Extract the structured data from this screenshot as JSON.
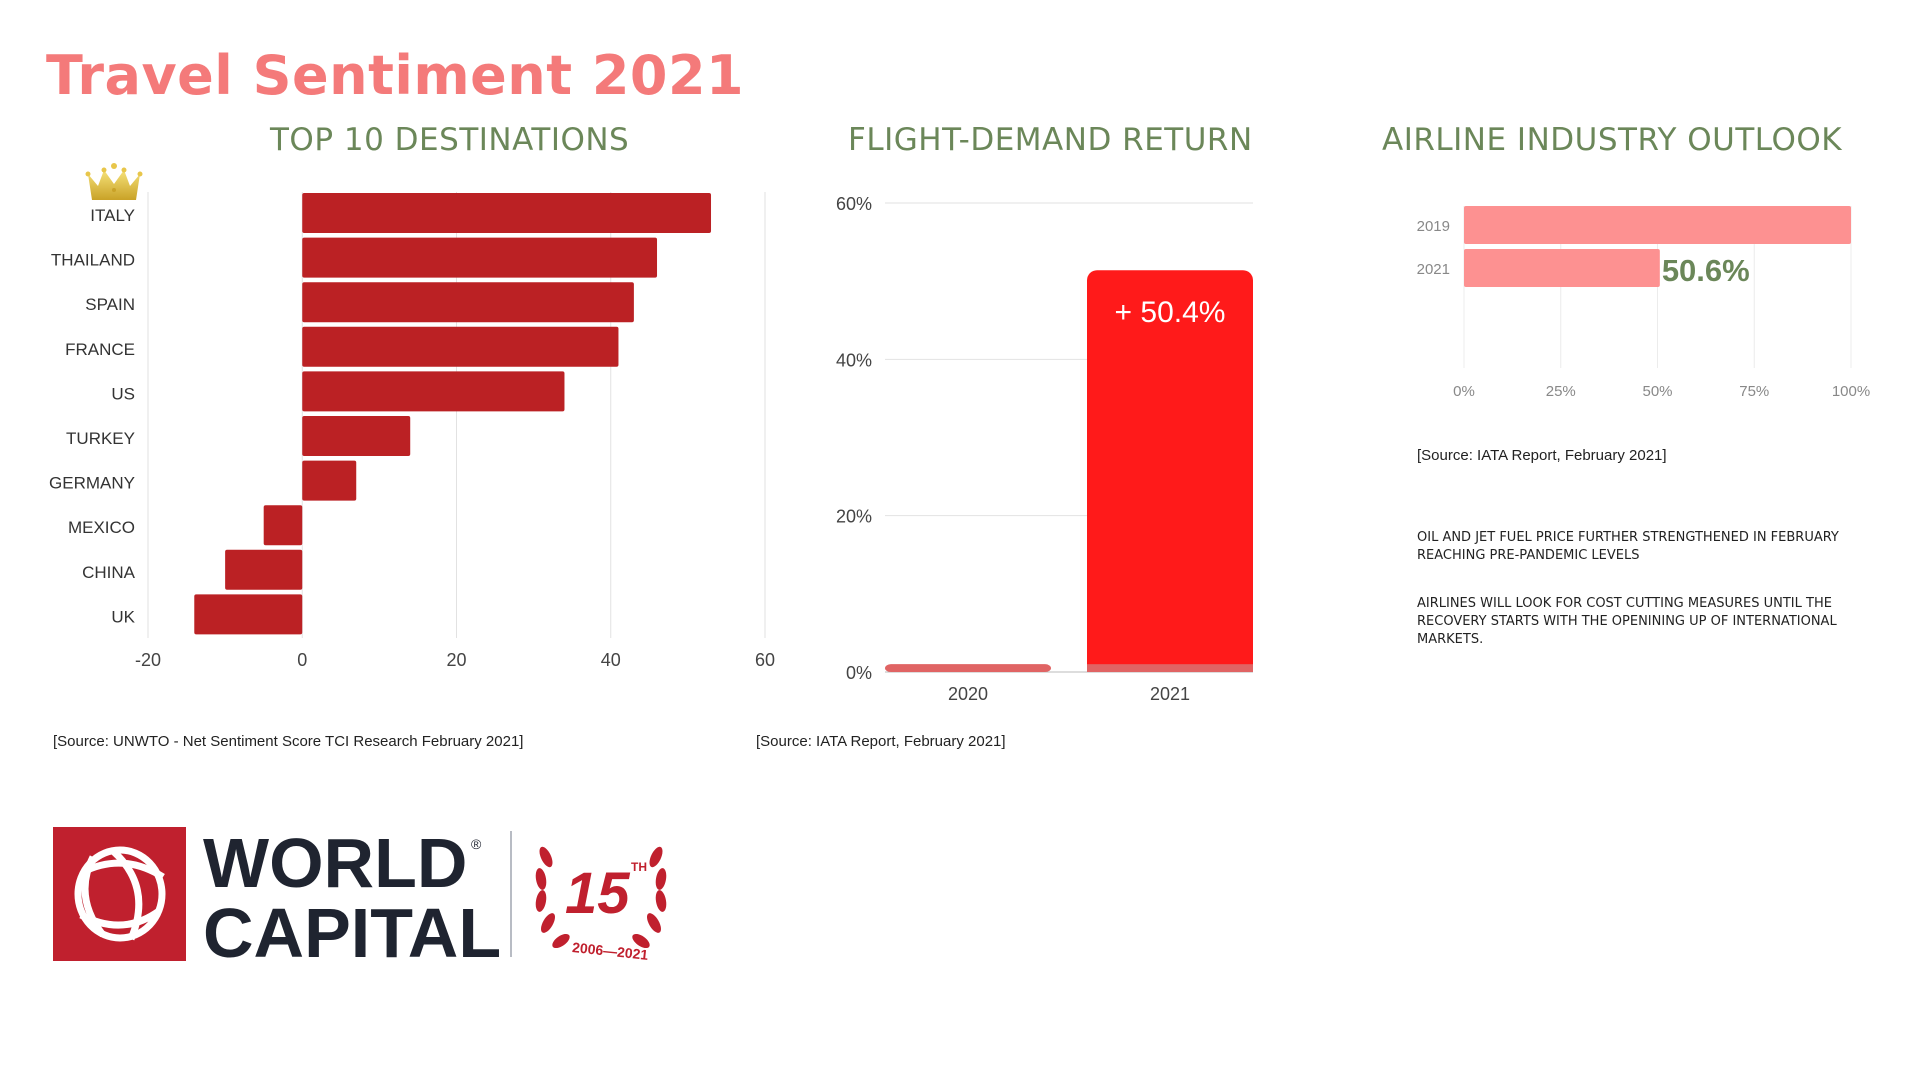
{
  "page": {
    "title": "Travel Sentiment 2021",
    "title_color": "#f47a7a",
    "heading_color": "#6b8759"
  },
  "sections": {
    "destinations": {
      "heading": "TOP 10 DESTINATIONS",
      "source": "[Source: UNWTO - Net Sentiment Score TCI Research February 2021]",
      "leader_icon": "crown-icon"
    },
    "flight_demand": {
      "heading": "FLIGHT-DEMAND RETURN",
      "source": "[Source: IATA Report, February 2021]"
    },
    "airline_outlook": {
      "heading": "AIRLINE INDUSTRY OUTLOOK",
      "source": "[Source: IATA Report, February 2021]",
      "notes": [
        "OIL AND JET FUEL PRICE FURTHER STRENGTHENED IN FEBRUARY REACHING PRE-PANDEMIC LEVELS",
        " AIRLINES WILL LOOK FOR COST CUTTING MEASURES UNTIL THE RECOVERY STARTS WITH THE OPENINING UP OF INTERNATIONAL MARKETS."
      ]
    }
  },
  "logo": {
    "brand_line1": "WORLD",
    "brand_line2": "CAPITAL",
    "registered": "®",
    "anniversary_number": "15",
    "anniversary_suffix": "TH",
    "anniversary_years": "2006—2021",
    "brand_color": "#c0202e",
    "text_color": "#1f2430"
  },
  "chart_data": [
    {
      "id": "destinations",
      "type": "bar",
      "orientation": "horizontal",
      "title": "TOP 10 DESTINATIONS",
      "categories": [
        "ITALY",
        "THAILAND",
        "SPAIN",
        "FRANCE",
        "US",
        "TURKEY",
        "GERMANY",
        "MEXICO",
        "CHINA",
        "UK"
      ],
      "values": [
        53,
        46,
        43,
        41,
        34,
        14,
        7,
        -5,
        -10,
        -14
      ],
      "xlim": [
        -20,
        60
      ],
      "xticks": [
        -20,
        0,
        20,
        40,
        60
      ],
      "xtick_labels": [
        "-20",
        "0",
        "20",
        "40",
        "60"
      ],
      "grid": true,
      "color": "#bb2124",
      "xlabel": "",
      "ylabel": ""
    },
    {
      "id": "flight_demand",
      "type": "bar",
      "orientation": "vertical",
      "title": "FLIGHT-DEMAND RETURN",
      "categories": [
        "2020",
        "2021"
      ],
      "series": [
        {
          "name": "base",
          "values": [
            1.0,
            1.0
          ],
          "color": "#e06464"
        },
        {
          "name": "increase",
          "values": [
            0,
            50.4
          ],
          "color": "#ff1a1a"
        }
      ],
      "annotations": [
        {
          "category": "2021",
          "text": "+ 50.4%"
        }
      ],
      "ylim": [
        0,
        60
      ],
      "yticks": [
        0,
        20,
        40,
        60
      ],
      "ytick_labels": [
        "0%",
        "20%",
        "40%",
        "60%"
      ],
      "grid": true,
      "xlabel": "",
      "ylabel": ""
    },
    {
      "id": "airline_outlook",
      "type": "bar",
      "orientation": "horizontal",
      "title": "AIRLINE INDUSTRY OUTLOOK",
      "categories": [
        "2019",
        "2021"
      ],
      "values": [
        100,
        50.6
      ],
      "annotations": [
        {
          "category": "2021",
          "text": "50.6%"
        }
      ],
      "xlim": [
        0,
        100
      ],
      "xticks": [
        0,
        25,
        50,
        75,
        100
      ],
      "xtick_labels": [
        "0%",
        "25%",
        "50%",
        "75%",
        "100%"
      ],
      "grid": true,
      "color": "#fd9191",
      "annotation_color": "#6b8759",
      "xlabel": "",
      "ylabel": ""
    }
  ]
}
